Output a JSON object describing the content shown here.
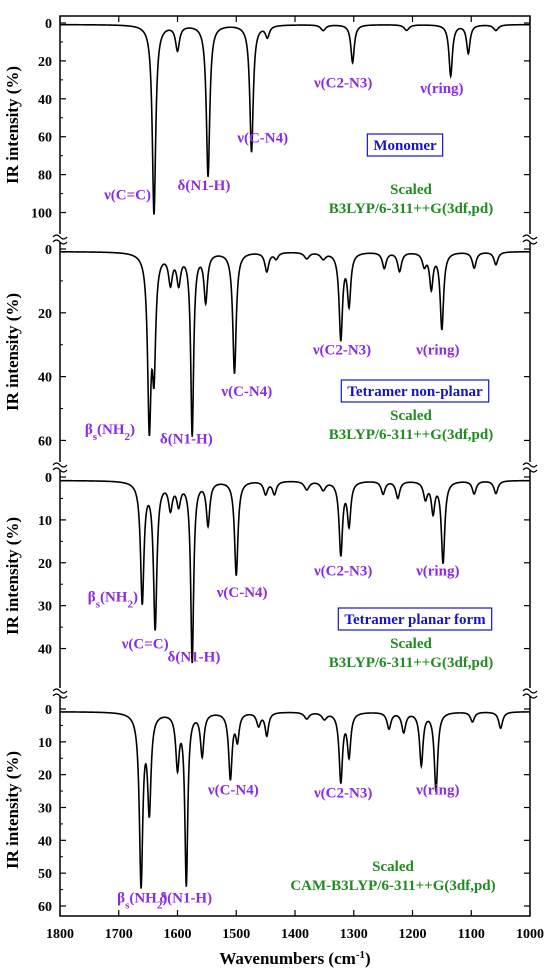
{
  "colors": {
    "annotation": "#8B2BE2",
    "method": "#1E8C1E",
    "box": "#1515C8",
    "axis": "#000000"
  },
  "chart_data": {
    "type": "line",
    "x_axis": {
      "label": "Wavenumbers (cm",
      "label_sup": "-1",
      "label_end": ")",
      "range": [
        1800,
        1000
      ],
      "reversed": true,
      "ticks": [
        1800,
        1700,
        1600,
        1500,
        1400,
        1300,
        1200,
        1100,
        1000
      ],
      "tick_labels": [
        "1800",
        "1700",
        "1600",
        "1500",
        "1400",
        "1300",
        "1200",
        "1100",
        "1000"
      ]
    },
    "panels": [
      {
        "id": "monomer",
        "ylabel": "IR intensity (%)",
        "ylim": [
          0,
          105
        ],
        "y_inverted": true,
        "yticks": [
          0,
          20,
          40,
          60,
          80,
          100
        ],
        "ytick_labels": [
          "0",
          "20",
          "40",
          "60",
          "80",
          "100"
        ],
        "box_label": "Monomer",
        "method_lines": [
          "Scaled",
          "B3LYP/6-311++G(3df,pd)"
        ],
        "peaks": [
          {
            "x": 1640,
            "y": 100,
            "w": 3.5
          },
          {
            "x": 1600,
            "y": 13,
            "w": 4
          },
          {
            "x": 1548,
            "y": 80,
            "w": 3.5
          },
          {
            "x": 1474,
            "y": 67,
            "w": 3.5
          },
          {
            "x": 1447,
            "y": 6,
            "w": 4
          },
          {
            "x": 1352,
            "y": 3,
            "w": 5
          },
          {
            "x": 1302,
            "y": 20,
            "w": 3.5
          },
          {
            "x": 1210,
            "y": 3,
            "w": 5
          },
          {
            "x": 1135,
            "y": 27,
            "w": 3.5
          },
          {
            "x": 1105,
            "y": 15,
            "w": 3.5
          },
          {
            "x": 1058,
            "y": 3,
            "w": 5
          }
        ],
        "annotations": [
          {
            "label": "ν(C=C)",
            "x": 1685,
            "y": 93
          },
          {
            "label": "δ(N1-H)",
            "x": 1555,
            "y": 88
          },
          {
            "label": "ν(C-N4)",
            "x": 1455,
            "y": 63
          },
          {
            "label": "ν(C2-N3)",
            "x": 1318,
            "y": 34
          },
          {
            "label": "ν(ring)",
            "x": 1150,
            "y": 37
          }
        ]
      },
      {
        "id": "tetramer-nonplanar",
        "ylabel": "IR intensity (%)",
        "ylim": [
          0,
          63
        ],
        "y_inverted": true,
        "yticks": [
          0,
          20,
          40,
          60
        ],
        "ytick_labels": [
          "0",
          "20",
          "40",
          "60"
        ],
        "box_label": "Tetramer non-planar",
        "method_lines": [
          "Scaled",
          "B3LYP/6-311++G(3df,pd)"
        ],
        "peaks": [
          {
            "x": 1648,
            "y": 52,
            "w": 3.5
          },
          {
            "x": 1640,
            "y": 34,
            "w": 3.5
          },
          {
            "x": 1612,
            "y": 9,
            "w": 4
          },
          {
            "x": 1598,
            "y": 9,
            "w": 4
          },
          {
            "x": 1575,
            "y": 57,
            "w": 3
          },
          {
            "x": 1552,
            "y": 15,
            "w": 3.5
          },
          {
            "x": 1503,
            "y": 38,
            "w": 3.5
          },
          {
            "x": 1448,
            "y": 6,
            "w": 4
          },
          {
            "x": 1432,
            "y": 2,
            "w": 4
          },
          {
            "x": 1380,
            "y": 2,
            "w": 5
          },
          {
            "x": 1352,
            "y": 2,
            "w": 5
          },
          {
            "x": 1322,
            "y": 27,
            "w": 3.5
          },
          {
            "x": 1308,
            "y": 16,
            "w": 3.5
          },
          {
            "x": 1248,
            "y": 5,
            "w": 4
          },
          {
            "x": 1222,
            "y": 6,
            "w": 4
          },
          {
            "x": 1180,
            "y": 4,
            "w": 4
          },
          {
            "x": 1168,
            "y": 11,
            "w": 3.5
          },
          {
            "x": 1150,
            "y": 24,
            "w": 3.5
          },
          {
            "x": 1095,
            "y": 5,
            "w": 4
          },
          {
            "x": 1058,
            "y": 4,
            "w": 4
          }
        ],
        "annotations": [
          {
            "label": "β",
            "sub": "s",
            "rest": "(NH",
            "sub2": "2",
            "end": ")",
            "x": 1715,
            "y": 58
          },
          {
            "label": "δ(N1-H)",
            "x": 1585,
            "y": 61
          },
          {
            "label": "ν(C-N4)",
            "x": 1482,
            "y": 46
          },
          {
            "label": "ν(C2-N3)",
            "x": 1320,
            "y": 33
          },
          {
            "label": "ν(ring)",
            "x": 1157,
            "y": 33
          }
        ]
      },
      {
        "id": "tetramer-planar",
        "ylabel": "IR intensity (%)",
        "ylim": [
          0,
          45
        ],
        "y_inverted": true,
        "yticks": [
          0,
          10,
          20,
          30,
          40
        ],
        "ytick_labels": [
          "0",
          "10",
          "20",
          "30",
          "40"
        ],
        "box_label": "Tetramer planar form",
        "method_lines": [
          "Scaled",
          "B3LYP/6-311++G(3df,pd)"
        ],
        "peaks": [
          {
            "x": 1660,
            "y": 28,
            "w": 3.5
          },
          {
            "x": 1638,
            "y": 34,
            "w": 3.5
          },
          {
            "x": 1612,
            "y": 6,
            "w": 4
          },
          {
            "x": 1598,
            "y": 5,
            "w": 4
          },
          {
            "x": 1575,
            "y": 42,
            "w": 3
          },
          {
            "x": 1548,
            "y": 10,
            "w": 3.5
          },
          {
            "x": 1500,
            "y": 22,
            "w": 3.5
          },
          {
            "x": 1450,
            "y": 3,
            "w": 4
          },
          {
            "x": 1435,
            "y": 3,
            "w": 4
          },
          {
            "x": 1380,
            "y": 2,
            "w": 5
          },
          {
            "x": 1352,
            "y": 2,
            "w": 5
          },
          {
            "x": 1322,
            "y": 17,
            "w": 3.5
          },
          {
            "x": 1308,
            "y": 10,
            "w": 3.5
          },
          {
            "x": 1250,
            "y": 3,
            "w": 4
          },
          {
            "x": 1225,
            "y": 4,
            "w": 4
          },
          {
            "x": 1178,
            "y": 4,
            "w": 4
          },
          {
            "x": 1165,
            "y": 7,
            "w": 3.5
          },
          {
            "x": 1148,
            "y": 19,
            "w": 3.5
          },
          {
            "x": 1095,
            "y": 3,
            "w": 4
          },
          {
            "x": 1058,
            "y": 3,
            "w": 4
          }
        ],
        "annotations": [
          {
            "label": "β",
            "sub": "s",
            "rest": "(NH",
            "sub2": "2",
            "end": ")",
            "x": 1710,
            "y": 29
          },
          {
            "label": "ν(C=C)",
            "x": 1655,
            "y": 40
          },
          {
            "label": "δ(N1-H)",
            "x": 1572,
            "y": 43
          },
          {
            "label": "ν(C-N4)",
            "x": 1490,
            "y": 28
          },
          {
            "label": "ν(C2-N3)",
            "x": 1318,
            "y": 23
          },
          {
            "label": "ν(ring)",
            "x": 1157,
            "y": 23
          }
        ]
      },
      {
        "id": "cam-b3lyp",
        "ylabel": "IR intensity (%)",
        "ylim": [
          0,
          60
        ],
        "y_inverted": true,
        "yticks": [
          0,
          10,
          20,
          30,
          40,
          50,
          60
        ],
        "ytick_labels": [
          "0",
          "10",
          "20",
          "30",
          "40",
          "50",
          "60"
        ],
        "box_label": "",
        "method_lines": [
          "Scaled",
          "CAM-B3LYP/6-311++G(3df,pd)"
        ],
        "peaks": [
          {
            "x": 1662,
            "y": 52,
            "w": 3.5
          },
          {
            "x": 1648,
            "y": 29,
            "w": 3.5
          },
          {
            "x": 1600,
            "y": 16,
            "w": 3.5
          },
          {
            "x": 1585,
            "y": 52,
            "w": 3
          },
          {
            "x": 1558,
            "y": 13,
            "w": 3.5
          },
          {
            "x": 1510,
            "y": 20,
            "w": 3.5
          },
          {
            "x": 1498,
            "y": 8,
            "w": 3.5
          },
          {
            "x": 1462,
            "y": 4,
            "w": 4
          },
          {
            "x": 1448,
            "y": 7,
            "w": 3.5
          },
          {
            "x": 1380,
            "y": 2,
            "w": 5
          },
          {
            "x": 1350,
            "y": 2,
            "w": 5
          },
          {
            "x": 1322,
            "y": 21,
            "w": 3.5
          },
          {
            "x": 1308,
            "y": 13,
            "w": 3.5
          },
          {
            "x": 1240,
            "y": 5,
            "w": 4
          },
          {
            "x": 1215,
            "y": 6,
            "w": 4
          },
          {
            "x": 1185,
            "y": 16,
            "w": 3.5
          },
          {
            "x": 1160,
            "y": 24,
            "w": 3.5
          },
          {
            "x": 1098,
            "y": 3,
            "w": 4
          },
          {
            "x": 1050,
            "y": 5,
            "w": 4
          }
        ],
        "annotations": [
          {
            "label": "β",
            "sub": "s",
            "rest": "(NH",
            "sub2": "2",
            "end": ")",
            "x": 1660,
            "y": 59
          },
          {
            "label": "δ(N1-H)",
            "x": 1586,
            "y": 59
          },
          {
            "label": "ν(C-N4)",
            "x": 1505,
            "y": 26
          },
          {
            "label": "ν(C2-N3)",
            "x": 1318,
            "y": 27
          },
          {
            "label": "ν(ring)",
            "x": 1157,
            "y": 26
          }
        ]
      }
    ]
  }
}
